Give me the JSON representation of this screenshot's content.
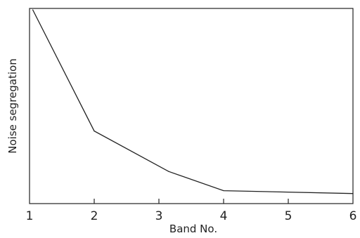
{
  "chart_data": {
    "type": "line",
    "title": "",
    "xlabel": "Band No.",
    "ylabel": "Noise segregation",
    "xlim": [
      1,
      6
    ],
    "x_ticks": [
      "1",
      "2",
      "3",
      "4",
      "5",
      "6"
    ],
    "y_ticks_shown": false,
    "grid": false,
    "series": [
      {
        "x": [
          1.05,
          2.0,
          3.15,
          4.0,
          6.0
        ],
        "y": [
          1.0,
          0.37,
          0.16,
          0.06,
          0.045
        ]
      }
    ],
    "colors": {
      "line": "#222222",
      "axis": "#222222"
    }
  }
}
